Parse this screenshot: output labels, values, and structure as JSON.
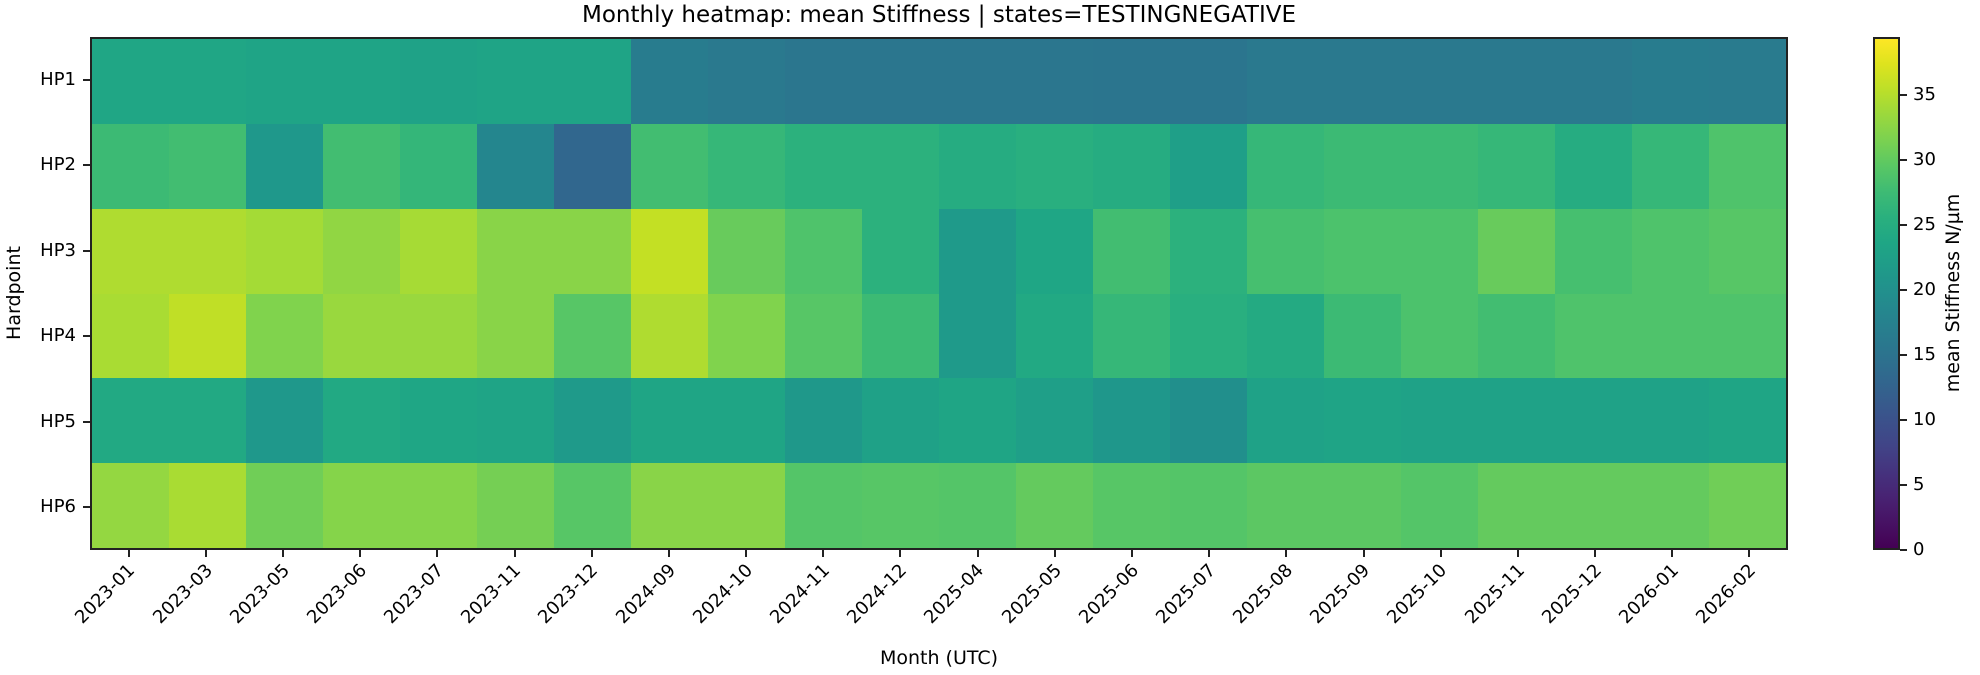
{
  "chart_data": {
    "type": "heatmap",
    "title": "Monthly heatmap: mean Stiffness | states=TESTINGNEGATIVE",
    "xlabel": "Month (UTC)",
    "ylabel": "Hardpoint",
    "colorbar_label": "mean Stiffness N/µm",
    "colormap": "viridis",
    "vmin": 0,
    "vmax": 39.5,
    "colorbar_ticks": [
      0,
      5,
      10,
      15,
      20,
      25,
      30,
      35
    ],
    "x": [
      "2023-01",
      "2023-03",
      "2023-05",
      "2023-06",
      "2023-07",
      "2023-11",
      "2023-12",
      "2024-09",
      "2024-10",
      "2024-11",
      "2024-12",
      "2025-04",
      "2025-05",
      "2025-06",
      "2025-07",
      "2025-08",
      "2025-09",
      "2025-10",
      "2025-11",
      "2025-12",
      "2026-01",
      "2026-02"
    ],
    "y": [
      "HP1",
      "HP2",
      "HP3",
      "HP4",
      "HP5",
      "HP6"
    ],
    "values": [
      [
        23.8,
        23.8,
        23.4,
        23.4,
        23.0,
        23.4,
        23.4,
        16.5,
        16.0,
        15.5,
        15.5,
        15.5,
        15.5,
        15.3,
        15.3,
        16.0,
        16.0,
        16.0,
        16.0,
        16.0,
        16.5,
        16.3
      ],
      [
        27.5,
        28.0,
        21.2,
        28.0,
        26.8,
        18.3,
        13.0,
        28.0,
        27.0,
        26.0,
        26.0,
        25.0,
        25.5,
        25.0,
        22.5,
        27.0,
        27.5,
        27.5,
        27.0,
        25.0,
        27.0,
        29.0
      ],
      [
        34.8,
        34.8,
        34.2,
        33.0,
        34.3,
        32.5,
        32.5,
        36.0,
        30.5,
        29.0,
        26.0,
        21.5,
        23.7,
        28.0,
        26.0,
        28.3,
        28.8,
        28.8,
        30.5,
        28.3,
        29.0,
        29.5
      ],
      [
        34.5,
        35.8,
        32.0,
        33.5,
        33.5,
        32.5,
        29.5,
        34.8,
        32.0,
        29.5,
        27.5,
        21.5,
        24.3,
        27.0,
        25.5,
        24.5,
        27.5,
        28.8,
        28.0,
        29.0,
        29.0,
        29.0
      ],
      [
        24.3,
        24.3,
        21.2,
        24.3,
        23.7,
        23.4,
        21.5,
        23.5,
        23.5,
        21.3,
        22.8,
        23.5,
        22.5,
        21.0,
        19.8,
        23.0,
        23.3,
        23.0,
        23.0,
        23.0,
        23.0,
        23.5
      ],
      [
        33.2,
        34.5,
        31.0,
        32.3,
        32.3,
        31.3,
        29.5,
        32.5,
        32.5,
        29.3,
        29.5,
        29.3,
        30.3,
        29.5,
        29.3,
        29.8,
        29.8,
        29.3,
        30.3,
        30.3,
        30.3,
        31.0
      ]
    ]
  }
}
